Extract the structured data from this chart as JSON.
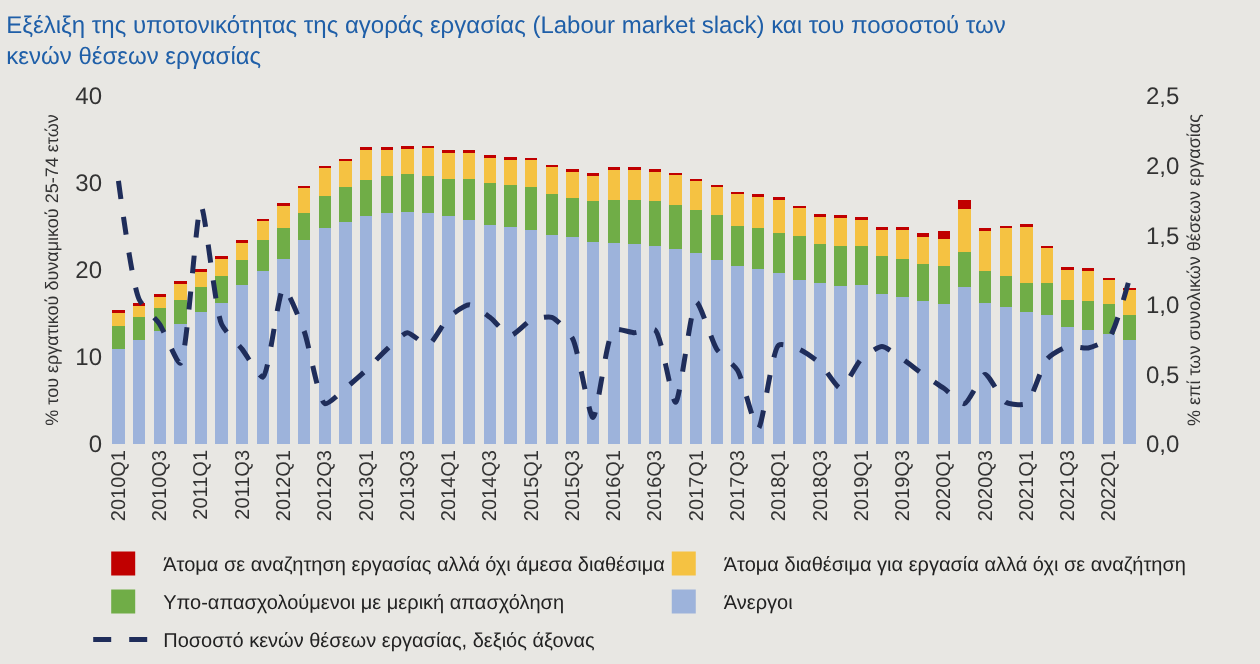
{
  "chart_data": {
    "type": "bar",
    "stacked": true,
    "title": "Εξέλιξη της υποτονικότητας της αγοράς εργασίας (Labour market slack) και του ποσοστού των κενών θέσεων εργασίας",
    "ylabel": "% του εργατικού δυναμικού 25-74 ετών",
    "y2label": "% επί των συνολικών θέσεων εργασίας",
    "categories": [
      "2010Q1",
      null,
      "2010Q3",
      null,
      "2011Q1",
      null,
      "2011Q3",
      null,
      "2012Q1",
      null,
      "2012Q3",
      null,
      "2013Q1",
      null,
      "2013Q3",
      null,
      "2014Q1",
      null,
      "2014Q3",
      null,
      "2015Q1",
      null,
      "2015Q3",
      null,
      "2016Q1",
      null,
      "2016Q3",
      null,
      "2017Q1",
      null,
      "2017Q3",
      null,
      "2018Q1",
      null,
      "2018Q3",
      null,
      "2019Q1",
      null,
      "2019Q3",
      null,
      "2020Q1",
      null,
      "2020Q3",
      null,
      "2021Q1",
      null,
      "2021Q3",
      null,
      "2022Q1",
      null
    ],
    "series": [
      {
        "name": "Άνεργοι",
        "color": "#9db3db",
        "values": [
          10.9,
          11.9,
          13.0,
          13.8,
          15.2,
          16.2,
          18.3,
          19.9,
          21.3,
          23.4,
          24.8,
          25.5,
          26.2,
          26.6,
          26.7,
          26.6,
          26.2,
          25.8,
          25.2,
          25.0,
          24.6,
          24.0,
          23.8,
          23.2,
          23.1,
          23.0,
          22.8,
          22.4,
          22.0,
          21.1,
          20.5,
          20.1,
          19.7,
          18.9,
          18.5,
          18.2,
          18.3,
          17.2,
          16.9,
          16.4,
          16.1,
          18.0,
          16.2,
          15.8,
          15.2,
          14.8,
          13.5,
          13.1,
          12.7,
          11.9
        ]
      },
      {
        "name": "Υπο-απασχολούμενοι με μερική απασχόληση",
        "color": "#70ad47",
        "values": [
          2.7,
          2.7,
          2.6,
          2.8,
          2.9,
          3.1,
          2.8,
          3.5,
          3.5,
          3.2,
          3.7,
          4.0,
          4.1,
          4.2,
          4.3,
          4.2,
          4.3,
          4.7,
          4.8,
          4.8,
          4.9,
          4.7,
          4.5,
          4.7,
          5.0,
          5.1,
          5.1,
          5.1,
          4.9,
          5.2,
          4.6,
          4.7,
          4.6,
          5.0,
          4.5,
          4.6,
          4.5,
          4.4,
          4.4,
          4.3,
          4.4,
          4.1,
          3.7,
          3.5,
          3.3,
          3.7,
          3.1,
          3.3,
          3.4,
          2.9
        ]
      },
      {
        "name": "Άτομα διαθέσιμα για εργασία αλλά όχι σε αναζήτηση",
        "color": "#f5c242",
        "values": [
          1.5,
          1.3,
          1.3,
          1.8,
          1.7,
          2.0,
          2.0,
          2.2,
          2.6,
          2.8,
          3.2,
          3.0,
          3.5,
          3.0,
          2.9,
          3.2,
          3.0,
          3.0,
          2.9,
          2.9,
          3.1,
          3.1,
          3.0,
          2.9,
          3.4,
          3.4,
          3.4,
          3.4,
          3.3,
          3.2,
          3.6,
          3.6,
          3.8,
          3.2,
          3.1,
          3.2,
          3.0,
          3.0,
          3.3,
          3.1,
          3.1,
          4.9,
          4.6,
          5.5,
          6.5,
          4.0,
          3.4,
          3.5,
          2.7,
          2.9
        ]
      },
      {
        "name": "Άτομα σε αναζητηση εργασίας αλλά όχι άμεσα διαθέσιμα",
        "color": "#c00000",
        "values": [
          0.3,
          0.3,
          0.3,
          0.3,
          0.3,
          0.3,
          0.3,
          0.3,
          0.3,
          0.3,
          0.3,
          0.3,
          0.3,
          0.3,
          0.3,
          0.3,
          0.3,
          0.3,
          0.3,
          0.3,
          0.3,
          0.3,
          0.3,
          0.3,
          0.3,
          0.3,
          0.3,
          0.3,
          0.3,
          0.3,
          0.3,
          0.3,
          0.3,
          0.3,
          0.3,
          0.3,
          0.3,
          0.3,
          0.3,
          0.5,
          0.9,
          1.1,
          0.3,
          0.3,
          0.3,
          0.3,
          0.3,
          0.3,
          0.3,
          0.2
        ]
      },
      {
        "name": "Ποσοστό κενών θέσεων εργασίας, δεξιός άξονας",
        "type": "line",
        "axis": "y2",
        "color": "#1f2d5a",
        "line_style": "dashed",
        "values": [
          1.89,
          1.04,
          0.86,
          0.58,
          1.71,
          0.86,
          0.68,
          0.48,
          1.12,
          0.81,
          0.29,
          0.4,
          0.53,
          0.68,
          0.8,
          0.71,
          0.91,
          1.0,
          0.91,
          0.78,
          0.89,
          0.91,
          0.76,
          0.19,
          0.82,
          0.8,
          0.82,
          0.3,
          1.02,
          0.68,
          0.53,
          0.11,
          0.71,
          0.68,
          0.58,
          0.4,
          0.61,
          0.7,
          0.61,
          0.5,
          0.4,
          0.29,
          0.5,
          0.3,
          0.29,
          0.61,
          0.7,
          0.69,
          0.76,
          1.19
        ]
      }
    ],
    "ylim": [
      0,
      40
    ],
    "yticks": [
      0,
      10,
      20,
      30,
      40
    ],
    "y2lim": [
      0,
      2.5
    ],
    "y2ticks": [
      {
        "value": 0,
        "label": "0,0"
      },
      {
        "value": 0.5,
        "label": "0,5"
      },
      {
        "value": 1,
        "label": "1,0"
      },
      {
        "value": 1.5,
        "label": "1,5"
      },
      {
        "value": 2,
        "label": "2,0"
      },
      {
        "value": 2.5,
        "label": "2,5"
      }
    ],
    "legend": "bottom",
    "grid": false,
    "marker": "none"
  }
}
